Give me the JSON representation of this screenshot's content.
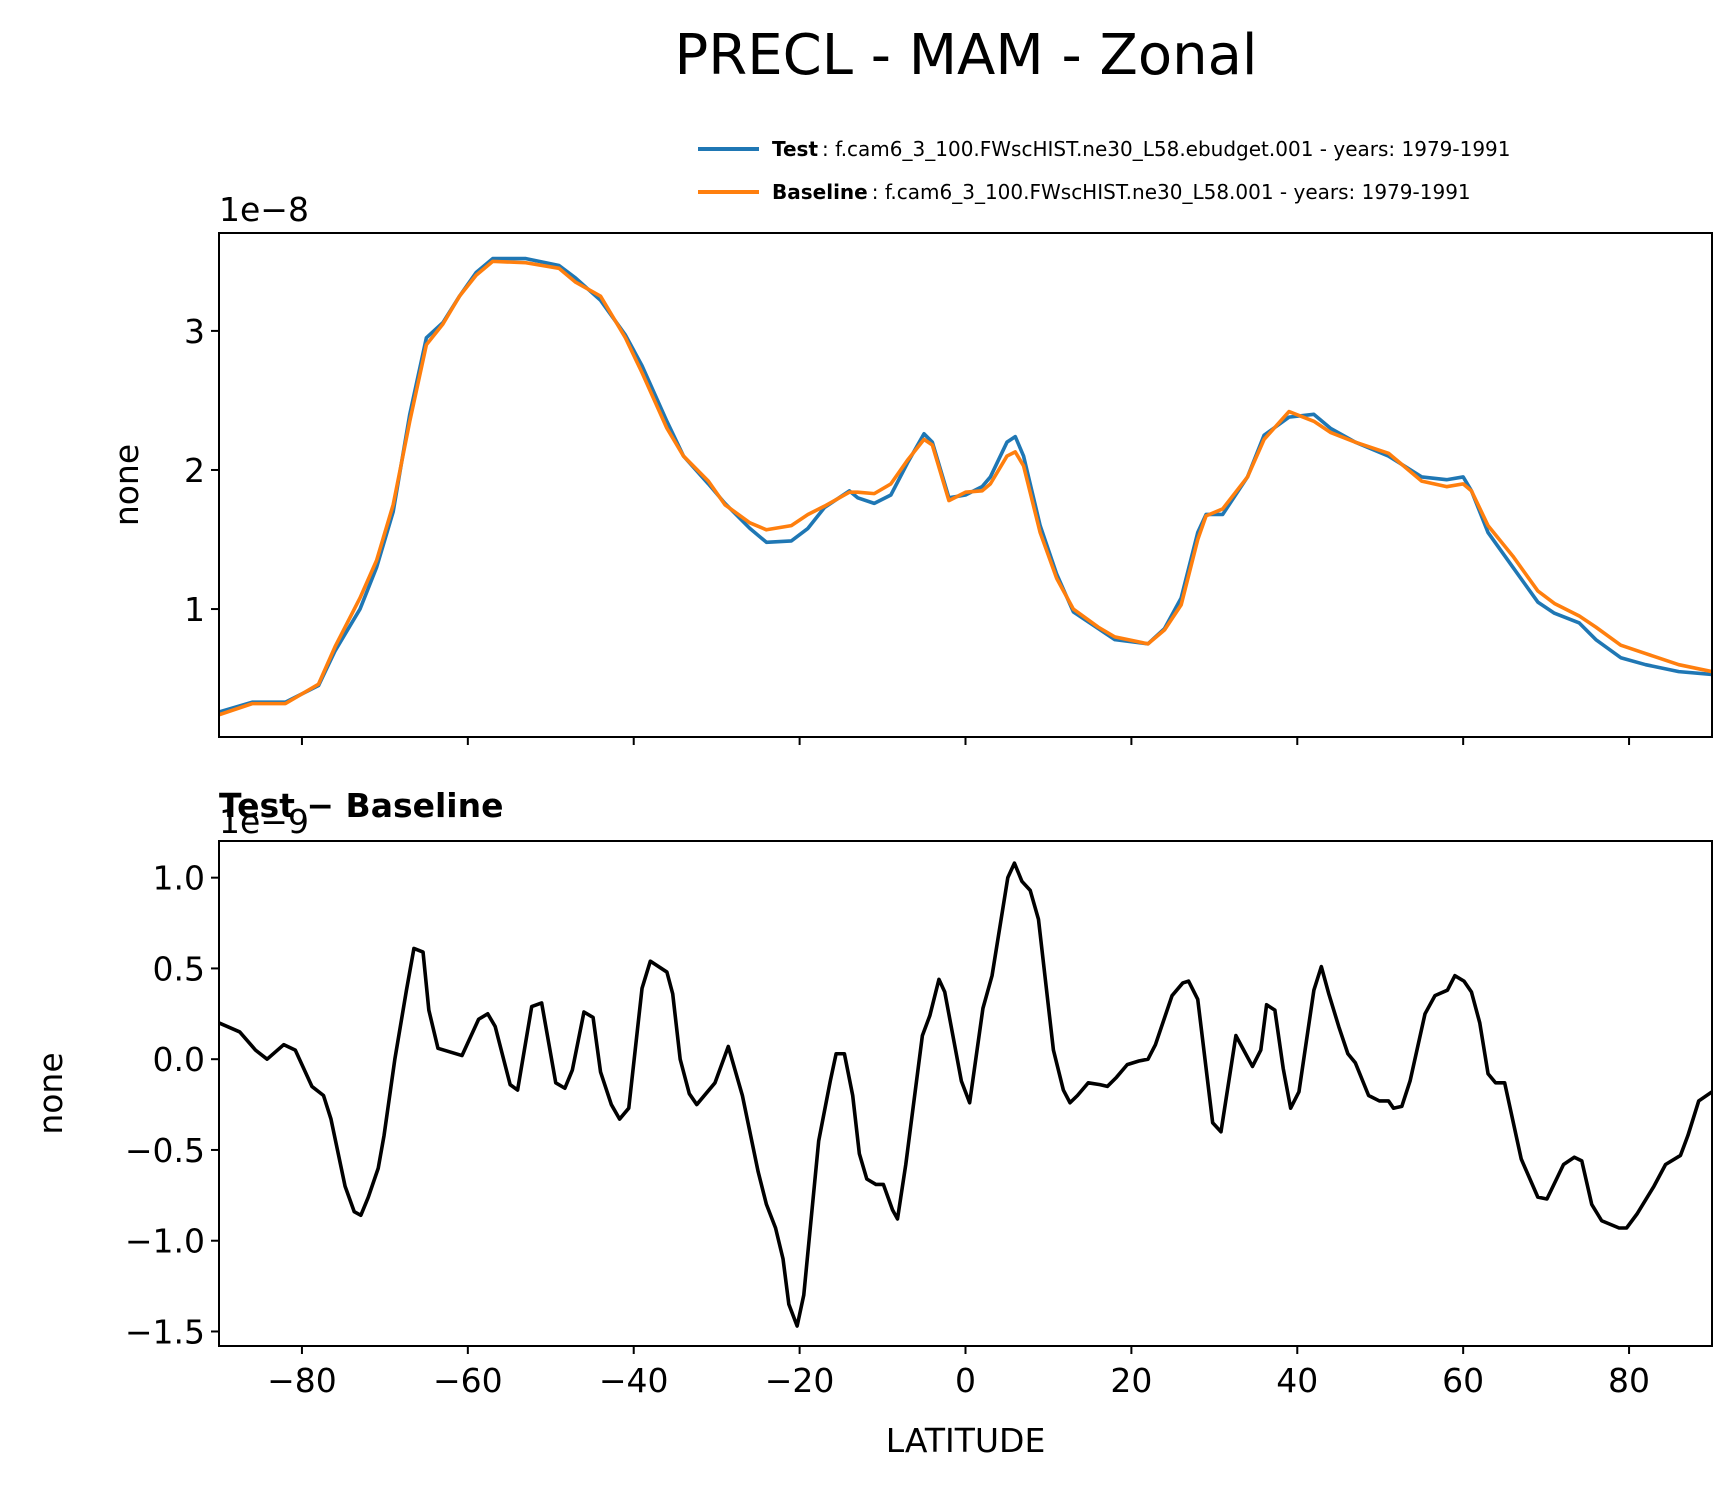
{
  "title": "PRECL - MAM - Zonal",
  "chart_data": [
    {
      "type": "line",
      "offset_text": "1e−8",
      "ylabel": "none",
      "x": [
        -90,
        -86,
        -82,
        -78,
        -76,
        -73,
        -71,
        -69,
        -67,
        -65,
        -63,
        -61,
        -59,
        -57,
        -53,
        -49,
        -47,
        -44,
        -41,
        -39,
        -36,
        -34,
        -31,
        -29,
        -26,
        -24,
        -21,
        -19,
        -17,
        -14,
        -13,
        -11,
        -9,
        -7,
        -5,
        -4,
        -2,
        0,
        2,
        3,
        5,
        6,
        7,
        9,
        11,
        13,
        16,
        18,
        22,
        24,
        26,
        28,
        29,
        31,
        34,
        36,
        39,
        42,
        44,
        47,
        51,
        55,
        58,
        60,
        61,
        63,
        66,
        69,
        71,
        74,
        76,
        79,
        82,
        86,
        90
      ],
      "series": [
        {
          "name": "Test",
          "description": ": f.cam6_3_100.FWscHIST.ne30_L58.ebudget.001 - years: 1979-1991",
          "color": "#1f77b4",
          "values": [
            0.26,
            0.33,
            0.33,
            0.45,
            0.7,
            1.0,
            1.3,
            1.7,
            2.4,
            2.95,
            3.06,
            3.25,
            3.42,
            3.52,
            3.52,
            3.47,
            3.38,
            3.22,
            2.97,
            2.75,
            2.35,
            2.1,
            1.9,
            1.76,
            1.58,
            1.48,
            1.49,
            1.58,
            1.73,
            1.85,
            1.8,
            1.76,
            1.82,
            2.05,
            2.26,
            2.2,
            1.8,
            1.82,
            1.88,
            1.95,
            2.2,
            2.24,
            2.1,
            1.6,
            1.25,
            0.98,
            0.86,
            0.78,
            0.75,
            0.86,
            1.08,
            1.55,
            1.68,
            1.68,
            1.95,
            2.25,
            2.38,
            2.4,
            2.3,
            2.2,
            2.1,
            1.95,
            1.93,
            1.95,
            1.85,
            1.55,
            1.3,
            1.05,
            0.97,
            0.9,
            0.78,
            0.65,
            0.6,
            0.55,
            0.53
          ]
        },
        {
          "name": "Baseline",
          "description": ": f.cam6_3_100.FWscHIST.ne30_L58.001 - years: 1979-1991",
          "color": "#ff7f0e",
          "values": [
            0.24,
            0.32,
            0.32,
            0.46,
            0.73,
            1.08,
            1.35,
            1.75,
            2.35,
            2.9,
            3.05,
            3.25,
            3.4,
            3.5,
            3.49,
            3.45,
            3.35,
            3.25,
            2.95,
            2.7,
            2.3,
            2.1,
            1.92,
            1.75,
            1.62,
            1.57,
            1.6,
            1.68,
            1.74,
            1.84,
            1.84,
            1.83,
            1.9,
            2.07,
            2.22,
            2.18,
            1.78,
            1.84,
            1.85,
            1.9,
            2.1,
            2.13,
            2.03,
            1.55,
            1.22,
            1.0,
            0.87,
            0.8,
            0.75,
            0.85,
            1.03,
            1.5,
            1.67,
            1.72,
            1.95,
            2.22,
            2.42,
            2.35,
            2.27,
            2.2,
            2.12,
            1.92,
            1.88,
            1.9,
            1.85,
            1.6,
            1.38,
            1.13,
            1.04,
            0.95,
            0.87,
            0.74,
            0.68,
            0.6,
            0.55
          ]
        }
      ],
      "xlim": [
        -90,
        90
      ],
      "xticks": [
        -80,
        -60,
        -40,
        -20,
        0,
        20,
        40,
        60,
        80
      ],
      "show_xtick_labels": false,
      "ylim": [
        0.08,
        3.704
      ],
      "yticks": [
        1,
        2,
        3
      ]
    },
    {
      "type": "line",
      "title": "Test − Baseline",
      "offset_text": "1e−9",
      "xlabel": "LATITUDE",
      "ylabel": "none",
      "x": [
        -90,
        -87.5,
        -85.6,
        -84.2,
        -82.2,
        -80.8,
        -78.8,
        -77.4,
        -76.5,
        -74.8,
        -73.7,
        -72.9,
        -72,
        -70.8,
        -70.1,
        -68.8,
        -67.4,
        -66.5,
        -65.4,
        -64.7,
        -63.6,
        -60.7,
        -58.7,
        -57.6,
        -56.7,
        -54.9,
        -54,
        -52.3,
        -51.1,
        -49.4,
        -48.3,
        -47.4,
        -46,
        -44.9,
        -44,
        -42.7,
        -41.7,
        -40.6,
        -39,
        -38,
        -36,
        -35.3,
        -34.4,
        -33.3,
        -32.4,
        -30.2,
        -28.6,
        -26.9,
        -25,
        -24,
        -22.9,
        -22,
        -21.3,
        -20.3,
        -19.5,
        -17.7,
        -16.3,
        -15.6,
        -14.6,
        -13.6,
        -12.8,
        -11.9,
        -10.8,
        -9.9,
        -8.8,
        -8.2,
        -7.2,
        -5.2,
        -4.3,
        -3.2,
        -2.5,
        -0.5,
        0.5,
        2.1,
        3.2,
        5.1,
        5.9,
        6.8,
        7.8,
        8.8,
        10.6,
        11.8,
        12.6,
        13.5,
        14.8,
        16.2,
        17.1,
        18.2,
        19.5,
        20.9,
        22,
        22.9,
        24.9,
        26.2,
        26.9,
        28,
        29.8,
        30.8,
        32.6,
        34.6,
        35.6,
        36.3,
        37.3,
        38.3,
        39.2,
        40.2,
        42,
        42.9,
        43.8,
        45,
        46.1,
        47,
        48.6,
        49.9,
        51,
        51.6,
        52.6,
        53.6,
        55.4,
        56.6,
        58.1,
        59,
        60.1,
        61,
        62,
        63,
        63.9,
        65,
        67,
        69,
        70.1,
        72.1,
        73.4,
        74.3,
        75.5,
        76.7,
        78.8,
        79.7,
        81,
        83,
        84.4,
        86.2,
        87.1,
        88.4,
        90
      ],
      "series": [
        {
          "color": "#000000",
          "values": [
            0.2,
            0.15,
            0.05,
            0.0,
            0.08,
            0.05,
            -0.15,
            -0.2,
            -0.33,
            -0.7,
            -0.84,
            -0.86,
            -0.76,
            -0.6,
            -0.42,
            0.0,
            0.38,
            0.61,
            0.59,
            0.27,
            0.06,
            0.02,
            0.22,
            0.25,
            0.18,
            -0.14,
            -0.17,
            0.29,
            0.31,
            -0.13,
            -0.16,
            -0.06,
            0.26,
            0.23,
            -0.07,
            -0.25,
            -0.33,
            -0.27,
            0.39,
            0.54,
            0.48,
            0.36,
            0.0,
            -0.19,
            -0.25,
            -0.13,
            0.07,
            -0.2,
            -0.62,
            -0.8,
            -0.93,
            -1.1,
            -1.35,
            -1.47,
            -1.3,
            -0.45,
            -0.12,
            0.03,
            0.03,
            -0.2,
            -0.52,
            -0.66,
            -0.69,
            -0.69,
            -0.83,
            -0.88,
            -0.58,
            0.13,
            0.24,
            0.44,
            0.37,
            -0.12,
            -0.24,
            0.28,
            0.46,
            1.0,
            1.08,
            0.98,
            0.93,
            0.77,
            0.05,
            -0.17,
            -0.24,
            -0.2,
            -0.13,
            -0.14,
            -0.15,
            -0.1,
            -0.03,
            -0.01,
            0.0,
            0.08,
            0.35,
            0.42,
            0.43,
            0.33,
            -0.35,
            -0.4,
            0.13,
            -0.04,
            0.05,
            0.3,
            0.27,
            -0.05,
            -0.27,
            -0.18,
            0.38,
            0.51,
            0.36,
            0.18,
            0.03,
            -0.02,
            -0.2,
            -0.23,
            -0.23,
            -0.27,
            -0.26,
            -0.12,
            0.25,
            0.35,
            0.38,
            0.46,
            0.43,
            0.37,
            0.2,
            -0.08,
            -0.13,
            -0.13,
            -0.55,
            -0.76,
            -0.77,
            -0.58,
            -0.54,
            -0.56,
            -0.8,
            -0.89,
            -0.93,
            -0.93,
            -0.85,
            -0.7,
            -0.58,
            -0.53,
            -0.42,
            -0.23,
            -0.18
          ]
        }
      ],
      "xlim": [
        -90,
        90
      ],
      "xticks": [
        {
          "value": -80,
          "label": "−80"
        },
        {
          "value": -60,
          "label": "−60"
        },
        {
          "value": -40,
          "label": "−40"
        },
        {
          "value": -20,
          "label": "−20"
        },
        0,
        20,
        40,
        60,
        80
      ],
      "show_xtick_labels": true,
      "ylim": [
        -1.58,
        1.202
      ],
      "yticks": [
        {
          "value": 1.0,
          "label": "1.0"
        },
        {
          "value": 0.5,
          "label": "0.5"
        },
        {
          "value": 0.0,
          "label": "0.0"
        },
        {
          "value": -0.5,
          "label": "−0.5"
        },
        {
          "value": -1.0,
          "label": "−1.0"
        },
        {
          "value": -1.5,
          "label": "−1.5"
        }
      ]
    }
  ]
}
